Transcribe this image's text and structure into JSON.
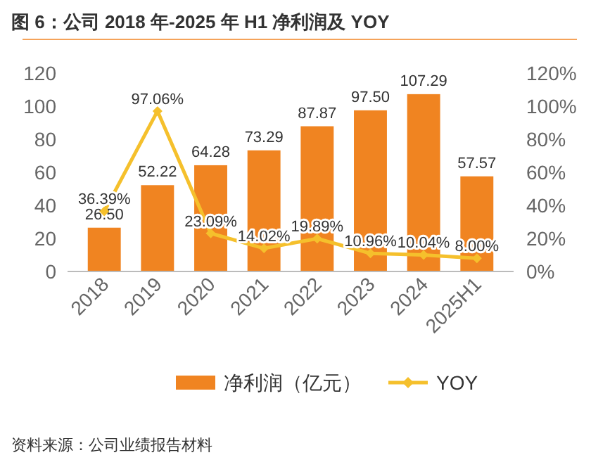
{
  "chart_data": {
    "type": "bar",
    "title": "图 6：公司 2018 年-2025 年 H1 净利润及 YOY",
    "categories": [
      "2018",
      "2019",
      "2020",
      "2021",
      "2022",
      "2023",
      "2024",
      "2025H1"
    ],
    "series": [
      {
        "name": "净利润（亿元）",
        "color": "#f08421",
        "values": [
          26.5,
          52.22,
          64.28,
          73.29,
          87.87,
          97.5,
          107.29,
          57.57
        ],
        "value_labels": [
          "26.50",
          "52.22",
          "64.28",
          "73.29",
          "87.87",
          "97.50",
          "107.29",
          "57.57"
        ]
      },
      {
        "name": "YOY",
        "type": "line",
        "axis": "y2",
        "color": "#f5c02c",
        "marker": "diamond",
        "values": [
          36.39,
          97.06,
          23.09,
          14.02,
          19.89,
          10.96,
          10.04,
          8.0
        ],
        "value_labels": [
          "36.39%",
          "97.06%",
          "23.09%",
          "14.02%",
          "19.89%",
          "10.96%",
          "10.04%",
          "8.00%"
        ]
      }
    ],
    "ylim": [
      0,
      120
    ],
    "yticks": [
      0,
      20,
      40,
      60,
      80,
      100,
      120
    ],
    "y2lim": [
      0,
      120
    ],
    "y2ticks": [
      {
        "value": 0,
        "label": "0%"
      },
      {
        "value": 20,
        "label": "20%"
      },
      {
        "value": 40,
        "label": "40%"
      },
      {
        "value": 60,
        "label": "60%"
      },
      {
        "value": 80,
        "label": "80%"
      },
      {
        "value": 100,
        "label": "100%"
      },
      {
        "value": 120,
        "label": "120%"
      }
    ],
    "legend": "bottom",
    "grid": false,
    "annotations": [
      "资料来源：公司业绩报告材料"
    ]
  }
}
